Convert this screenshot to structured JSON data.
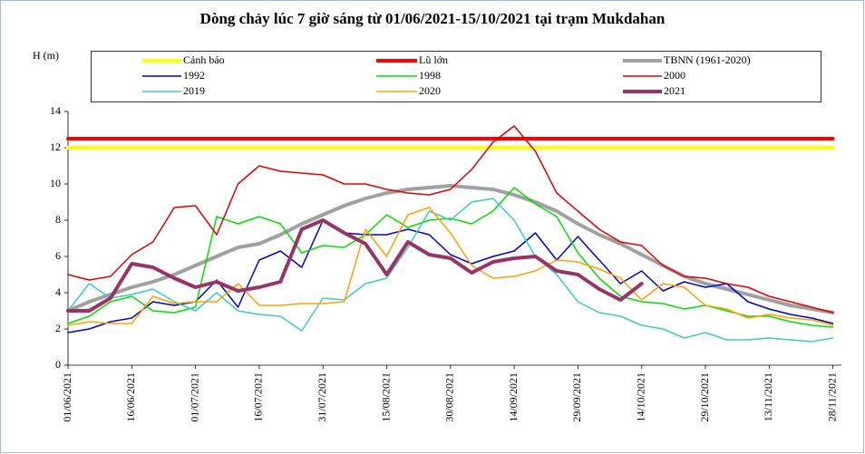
{
  "chart_data": {
    "type": "line",
    "title": "Dòng chảy lúc 7 giờ sáng từ 01/06/2021-15/10/2021 tại trạm Mukdahan",
    "y_label": "H (m)",
    "ylim": [
      0,
      14
    ],
    "yticks": [
      0,
      2,
      4,
      6,
      8,
      10,
      12,
      14
    ],
    "xlim": [
      "01/06/2021",
      "30/11/2021"
    ],
    "xticks": [
      "01/06/2021",
      "16/06/2021",
      "01/07/2021",
      "16/07/2021",
      "31/07/2021",
      "15/08/2021",
      "30/08/2021",
      "14/09/2021",
      "29/09/2021",
      "14/10/2021",
      "29/10/2021",
      "13/11/2021",
      "28/11/2021"
    ],
    "x": [
      "01/06/2021",
      "06/06/2021",
      "11/06/2021",
      "16/06/2021",
      "21/06/2021",
      "26/06/2021",
      "01/07/2021",
      "06/07/2021",
      "11/07/2021",
      "16/07/2021",
      "21/07/2021",
      "26/07/2021",
      "31/07/2021",
      "05/08/2021",
      "10/08/2021",
      "15/08/2021",
      "20/08/2021",
      "25/08/2021",
      "30/08/2021",
      "04/09/2021",
      "09/09/2021",
      "14/09/2021",
      "19/09/2021",
      "24/09/2021",
      "29/09/2021",
      "04/10/2021",
      "09/10/2021",
      "14/10/2021",
      "19/10/2021",
      "24/10/2021",
      "29/10/2021",
      "03/11/2021",
      "08/11/2021",
      "13/11/2021",
      "18/11/2021",
      "23/11/2021",
      "28/11/2021"
    ],
    "series": [
      {
        "name": "Cảnh báo",
        "color": "#ffff00",
        "width": 4,
        "values": [
          12,
          12,
          12,
          12,
          12,
          12,
          12,
          12,
          12,
          12,
          12,
          12,
          12,
          12,
          12,
          12,
          12,
          12,
          12,
          12,
          12,
          12,
          12,
          12,
          12,
          12,
          12,
          12,
          12,
          12,
          12,
          12,
          12,
          12,
          12,
          12,
          12
        ]
      },
      {
        "name": "Lũ lớn",
        "color": "#ff0000",
        "width": 4,
        "values": [
          12.5,
          12.5,
          12.5,
          12.5,
          12.5,
          12.5,
          12.5,
          12.5,
          12.5,
          12.5,
          12.5,
          12.5,
          12.5,
          12.5,
          12.5,
          12.5,
          12.5,
          12.5,
          12.5,
          12.5,
          12.5,
          12.5,
          12.5,
          12.5,
          12.5,
          12.5,
          12.5,
          12.5,
          12.5,
          12.5,
          12.5,
          12.5,
          12.5,
          12.5,
          12.5,
          12.5,
          12.5
        ]
      },
      {
        "name": "TBNN (1961-2020)",
        "color": "#a0a0a0",
        "width": 4,
        "values": [
          3.0,
          3.5,
          3.9,
          4.3,
          4.6,
          5.0,
          5.5,
          6.0,
          6.5,
          6.7,
          7.2,
          7.8,
          8.3,
          8.8,
          9.2,
          9.5,
          9.7,
          9.8,
          9.9,
          9.8,
          9.7,
          9.4,
          9.0,
          8.5,
          7.8,
          7.2,
          6.7,
          6.1,
          5.5,
          4.9,
          4.5,
          4.2,
          3.9,
          3.6,
          3.3,
          3.1,
          2.9
        ]
      },
      {
        "name": "1992",
        "color": "#0000cc",
        "width": 1.5,
        "values": [
          1.8,
          2.0,
          2.4,
          2.6,
          3.5,
          3.3,
          3.5,
          4.7,
          3.2,
          5.8,
          6.3,
          5.4,
          8.0,
          7.3,
          7.2,
          7.2,
          7.5,
          7.2,
          6.1,
          5.6,
          6.0,
          6.3,
          7.3,
          5.8,
          7.1,
          5.8,
          4.5,
          5.2,
          4.1,
          4.6,
          4.3,
          4.5,
          3.5,
          3.1,
          2.8,
          2.6,
          2.3
        ]
      },
      {
        "name": "1998",
        "color": "#00e000",
        "width": 1.5,
        "values": [
          2.3,
          2.7,
          3.5,
          3.8,
          3.0,
          2.9,
          3.2,
          8.2,
          7.8,
          8.2,
          7.8,
          6.2,
          6.6,
          6.5,
          7.2,
          8.3,
          7.6,
          8.0,
          8.1,
          7.8,
          8.5,
          9.8,
          8.9,
          8.2,
          6.2,
          4.8,
          3.8,
          3.5,
          3.4,
          3.1,
          3.3,
          3.0,
          2.7,
          2.7,
          2.4,
          2.2,
          2.1
        ]
      },
      {
        "name": "2000",
        "color": "#e00000",
        "width": 1.5,
        "values": [
          5.0,
          4.7,
          4.9,
          6.1,
          6.8,
          8.7,
          8.8,
          7.2,
          10.0,
          11.0,
          10.7,
          10.6,
          10.5,
          10.0,
          10.0,
          9.7,
          9.5,
          9.4,
          9.7,
          10.8,
          12.3,
          13.2,
          11.8,
          9.5,
          8.5,
          7.5,
          6.8,
          6.6,
          5.5,
          4.9,
          4.8,
          4.5,
          4.3,
          3.8,
          3.5,
          3.2,
          2.9
        ]
      },
      {
        "name": "2019",
        "color": "#40c8c8",
        "width": 1.5,
        "values": [
          3.0,
          4.5,
          3.7,
          3.9,
          4.2,
          3.5,
          3.0,
          4.0,
          3.0,
          2.8,
          2.7,
          1.9,
          3.7,
          3.6,
          4.5,
          4.8,
          6.5,
          8.5,
          8.0,
          9.0,
          9.2,
          8.0,
          6.0,
          5.0,
          3.5,
          2.9,
          2.7,
          2.2,
          2.0,
          1.5,
          1.8,
          1.4,
          1.4,
          1.5,
          1.4,
          1.3,
          1.5
        ]
      },
      {
        "name": "2020",
        "color": "#ffa000",
        "width": 1.5,
        "values": [
          2.2,
          2.4,
          2.3,
          2.3,
          3.8,
          3.4,
          3.5,
          3.5,
          4.5,
          3.3,
          3.3,
          3.4,
          3.4,
          3.5,
          7.5,
          6.0,
          8.3,
          8.7,
          7.3,
          5.5,
          4.8,
          4.9,
          5.2,
          5.8,
          5.7,
          5.3,
          4.8,
          3.6,
          4.5,
          4.3,
          3.3,
          3.1,
          2.6,
          2.8,
          2.6,
          2.5,
          2.2
        ]
      },
      {
        "name": "2021",
        "color": "#993366",
        "width": 4,
        "values": [
          3.0,
          3.0,
          3.7,
          5.6,
          5.4,
          4.8,
          4.3,
          4.6,
          4.1,
          4.3,
          4.6,
          7.5,
          8.0,
          7.3,
          6.7,
          5.0,
          6.8,
          6.1,
          5.9,
          5.1,
          5.7,
          5.9,
          6.0,
          5.2,
          5.0,
          4.2,
          3.6,
          4.5,
          null,
          null,
          null,
          null,
          null,
          null,
          null,
          null,
          null
        ]
      }
    ]
  }
}
